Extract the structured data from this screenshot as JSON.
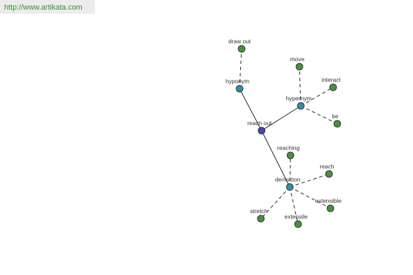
{
  "header": {
    "url": "http://www.artikata.com"
  },
  "nodes": [
    {
      "label": "reach out"
    },
    {
      "label": "hyponym"
    },
    {
      "label": "draw out"
    },
    {
      "label": "hypernym"
    },
    {
      "label": "move"
    },
    {
      "label": "interact"
    },
    {
      "label": "be"
    },
    {
      "label": "derivation"
    },
    {
      "label": "reaching"
    },
    {
      "label": "reach"
    },
    {
      "label": "extensible"
    },
    {
      "label": "extensile"
    },
    {
      "label": "stretch"
    }
  ]
}
